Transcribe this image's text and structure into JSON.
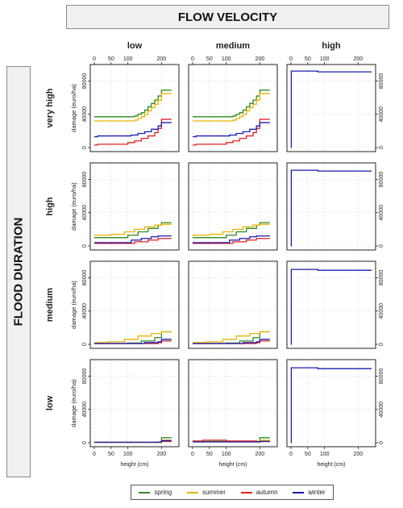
{
  "header": {
    "title": "FLOW VELOCITY"
  },
  "side": {
    "title": "FLOOD DURATION"
  },
  "columns": [
    "low",
    "medium",
    "high"
  ],
  "rows": [
    "very high",
    "high",
    "medium",
    "low"
  ],
  "axis": {
    "xlabel": "height (cm)",
    "ylabel": "damage (euro/ha)",
    "x_ticks": [
      "0",
      "50",
      "100",
      "200"
    ],
    "y_ticks": [
      "0",
      "40000",
      "80000"
    ]
  },
  "legend": [
    {
      "name": "spring",
      "color": "#2e8b1e"
    },
    {
      "name": "summer",
      "color": "#e8b400"
    },
    {
      "name": "autumn",
      "color": "#e02020"
    },
    {
      "name": "winter",
      "color": "#1a1ab0"
    }
  ],
  "chart_data": {
    "type": "line",
    "layout": "small multiples: rows = flood duration, columns = flow velocity",
    "xlim": [
      0,
      240
    ],
    "ylim": [
      0,
      95000
    ],
    "x_ticks": [
      0,
      50,
      100,
      200
    ],
    "y_ticks": [
      0,
      40000,
      80000
    ],
    "grid": true,
    "legend_position": "bottom",
    "panels": [
      {
        "row": "very high",
        "col": "low",
        "series": [
          {
            "name": "spring",
            "x": [
              0,
              110,
              120,
              130,
              140,
              150,
              160,
              170,
              180,
              190,
              200,
              230
            ],
            "y": [
              37000,
              37000,
              38000,
              40000,
              42000,
              45000,
              49000,
              53000,
              57000,
              62000,
              69000,
              69000
            ]
          },
          {
            "name": "summer",
            "x": [
              0,
              110,
              120,
              130,
              140,
              150,
              160,
              170,
              180,
              190,
              200,
              230
            ],
            "y": [
              32000,
              32000,
              33000,
              35000,
              37000,
              40000,
              44000,
              48000,
              52000,
              57000,
              65000,
              65000
            ]
          },
          {
            "name": "autumn",
            "x": [
              0,
              10,
              60,
              100,
              120,
              140,
              160,
              180,
              190,
              200,
              230
            ],
            "y": [
              3000,
              4000,
              4000,
              6000,
              8000,
              11000,
              14000,
              18000,
              23000,
              34000,
              34000
            ]
          },
          {
            "name": "winter",
            "x": [
              0,
              10,
              90,
              110,
              130,
              150,
              170,
              190,
              200,
              230
            ],
            "y": [
              13000,
              14000,
              14000,
              15000,
              17000,
              19000,
              22000,
              26000,
              30000,
              30000
            ]
          }
        ]
      },
      {
        "row": "very high",
        "col": "medium",
        "series": [
          {
            "name": "spring",
            "x": [
              0,
              110,
              120,
              130,
              140,
              150,
              160,
              170,
              180,
              190,
              200,
              230
            ],
            "y": [
              37000,
              37000,
              38000,
              40000,
              42000,
              45000,
              49000,
              53000,
              57000,
              62000,
              69000,
              69000
            ]
          },
          {
            "name": "summer",
            "x": [
              0,
              110,
              120,
              130,
              140,
              150,
              160,
              170,
              180,
              190,
              200,
              230
            ],
            "y": [
              32000,
              32000,
              33000,
              35000,
              37000,
              40000,
              44000,
              48000,
              52000,
              57000,
              65000,
              65000
            ]
          },
          {
            "name": "autumn",
            "x": [
              0,
              10,
              60,
              100,
              120,
              140,
              160,
              180,
              190,
              200,
              230
            ],
            "y": [
              3000,
              4000,
              4000,
              6000,
              8000,
              11000,
              14000,
              18000,
              23000,
              34000,
              34000
            ]
          },
          {
            "name": "winter",
            "x": [
              0,
              10,
              90,
              110,
              130,
              150,
              170,
              190,
              200,
              230
            ],
            "y": [
              13000,
              14000,
              14000,
              15000,
              17000,
              19000,
              22000,
              26000,
              30000,
              30000
            ]
          }
        ]
      },
      {
        "row": "very high",
        "col": "high",
        "series": [
          {
            "name": "winter",
            "x": [
              0,
              1,
              10,
              80,
              240
            ],
            "y": [
              0,
              92000,
              92000,
              91000,
              91000
            ]
          }
        ]
      },
      {
        "row": "high",
        "col": "low",
        "series": [
          {
            "name": "spring",
            "x": [
              0,
              60,
              100,
              130,
              160,
              190,
              200,
              230
            ],
            "y": [
              10000,
              10000,
              13000,
              17000,
              21000,
              25000,
              28000,
              28000
            ]
          },
          {
            "name": "summer",
            "x": [
              0,
              50,
              90,
              120,
              150,
              180,
              200,
              230
            ],
            "y": [
              13000,
              14000,
              17000,
              20000,
              23000,
              25000,
              26000,
              26000
            ]
          },
          {
            "name": "autumn",
            "x": [
              0,
              80,
              120,
              160,
              190,
              230
            ],
            "y": [
              3000,
              3000,
              5000,
              7000,
              9000,
              9000
            ]
          },
          {
            "name": "winter",
            "x": [
              0,
              80,
              110,
              140,
              170,
              190,
              230
            ],
            "y": [
              4000,
              4000,
              7000,
              9000,
              11000,
              12000,
              12000
            ]
          }
        ]
      },
      {
        "row": "high",
        "col": "medium",
        "series": [
          {
            "name": "spring",
            "x": [
              0,
              60,
              100,
              130,
              160,
              190,
              200,
              230
            ],
            "y": [
              10000,
              10000,
              13000,
              17000,
              21000,
              25000,
              28000,
              28000
            ]
          },
          {
            "name": "summer",
            "x": [
              0,
              50,
              90,
              120,
              150,
              180,
              200,
              230
            ],
            "y": [
              13000,
              14000,
              17000,
              20000,
              23000,
              25000,
              26000,
              26000
            ]
          },
          {
            "name": "autumn",
            "x": [
              0,
              80,
              120,
              160,
              190,
              230
            ],
            "y": [
              3000,
              3000,
              5000,
              7000,
              9000,
              9000
            ]
          },
          {
            "name": "winter",
            "x": [
              0,
              80,
              110,
              140,
              170,
              190,
              230
            ],
            "y": [
              4000,
              4000,
              7000,
              9000,
              11000,
              12000,
              12000
            ]
          }
        ]
      },
      {
        "row": "high",
        "col": "high",
        "series": [
          {
            "name": "winter",
            "x": [
              0,
              1,
              10,
              80,
              240
            ],
            "y": [
              0,
              91000,
              91000,
              90000,
              90000
            ]
          }
        ]
      },
      {
        "row": "medium",
        "col": "low",
        "series": [
          {
            "name": "spring",
            "x": [
              0,
              100,
              140,
              180,
              200,
              230
            ],
            "y": [
              1000,
              1500,
              4000,
              8000,
              15000,
              15000
            ]
          },
          {
            "name": "summer",
            "x": [
              0,
              40,
              90,
              130,
              170,
              200,
              230
            ],
            "y": [
              2000,
              3000,
              6000,
              10000,
              13000,
              15000,
              15000
            ]
          },
          {
            "name": "autumn",
            "x": [
              0,
              150,
              190,
              200,
              230
            ],
            "y": [
              1000,
              1000,
              2000,
              4000,
              4000
            ]
          },
          {
            "name": "winter",
            "x": [
              0,
              150,
              190,
              200,
              230
            ],
            "y": [
              1000,
              2000,
              3000,
              6000,
              6000
            ]
          }
        ]
      },
      {
        "row": "medium",
        "col": "medium",
        "series": [
          {
            "name": "spring",
            "x": [
              0,
              100,
              140,
              180,
              200,
              230
            ],
            "y": [
              1000,
              1500,
              4000,
              8000,
              15000,
              15000
            ]
          },
          {
            "name": "summer",
            "x": [
              0,
              40,
              90,
              130,
              170,
              200,
              230
            ],
            "y": [
              2000,
              3000,
              6000,
              10000,
              13000,
              15000,
              15000
            ]
          },
          {
            "name": "autumn",
            "x": [
              0,
              150,
              190,
              200,
              230
            ],
            "y": [
              1000,
              1000,
              2000,
              4000,
              4000
            ]
          },
          {
            "name": "winter",
            "x": [
              0,
              150,
              190,
              200,
              230
            ],
            "y": [
              1000,
              2000,
              3000,
              6000,
              6000
            ]
          }
        ]
      },
      {
        "row": "medium",
        "col": "high",
        "series": [
          {
            "name": "winter",
            "x": [
              0,
              1,
              10,
              80,
              240
            ],
            "y": [
              0,
              90000,
              90000,
              89000,
              89000
            ]
          }
        ]
      },
      {
        "row": "low",
        "col": "low",
        "series": [
          {
            "name": "spring",
            "x": [
              0,
              190,
              200,
              230
            ],
            "y": [
              500,
              500,
              6000,
              6000
            ]
          },
          {
            "name": "summer",
            "x": [
              0,
              190,
              200,
              230
            ],
            "y": [
              500,
              500,
              3000,
              3000
            ]
          },
          {
            "name": "autumn",
            "x": [
              0,
              190,
              200,
              230
            ],
            "y": [
              500,
              500,
              1500,
              1500
            ]
          },
          {
            "name": "winter",
            "x": [
              0,
              190,
              200,
              230
            ],
            "y": [
              500,
              800,
              2500,
              2500
            ]
          }
        ]
      },
      {
        "row": "low",
        "col": "medium",
        "series": [
          {
            "name": "spring",
            "x": [
              0,
              190,
              200,
              230
            ],
            "y": [
              1500,
              1500,
              6000,
              6000
            ]
          },
          {
            "name": "summer",
            "x": [
              0,
              190,
              200,
              230
            ],
            "y": [
              1000,
              1000,
              3000,
              3000
            ]
          },
          {
            "name": "autumn",
            "x": [
              0,
              30,
              100,
              190,
              200,
              230
            ],
            "y": [
              2000,
              3000,
              2000,
              1000,
              1500,
              1500
            ]
          },
          {
            "name": "winter",
            "x": [
              0,
              190,
              200,
              230
            ],
            "y": [
              1000,
              1000,
              1500,
              1500
            ]
          }
        ]
      },
      {
        "row": "low",
        "col": "high",
        "series": [
          {
            "name": "winter",
            "x": [
              0,
              1,
              10,
              80,
              240
            ],
            "y": [
              0,
              90000,
              90000,
              89000,
              89000
            ]
          }
        ]
      }
    ]
  }
}
